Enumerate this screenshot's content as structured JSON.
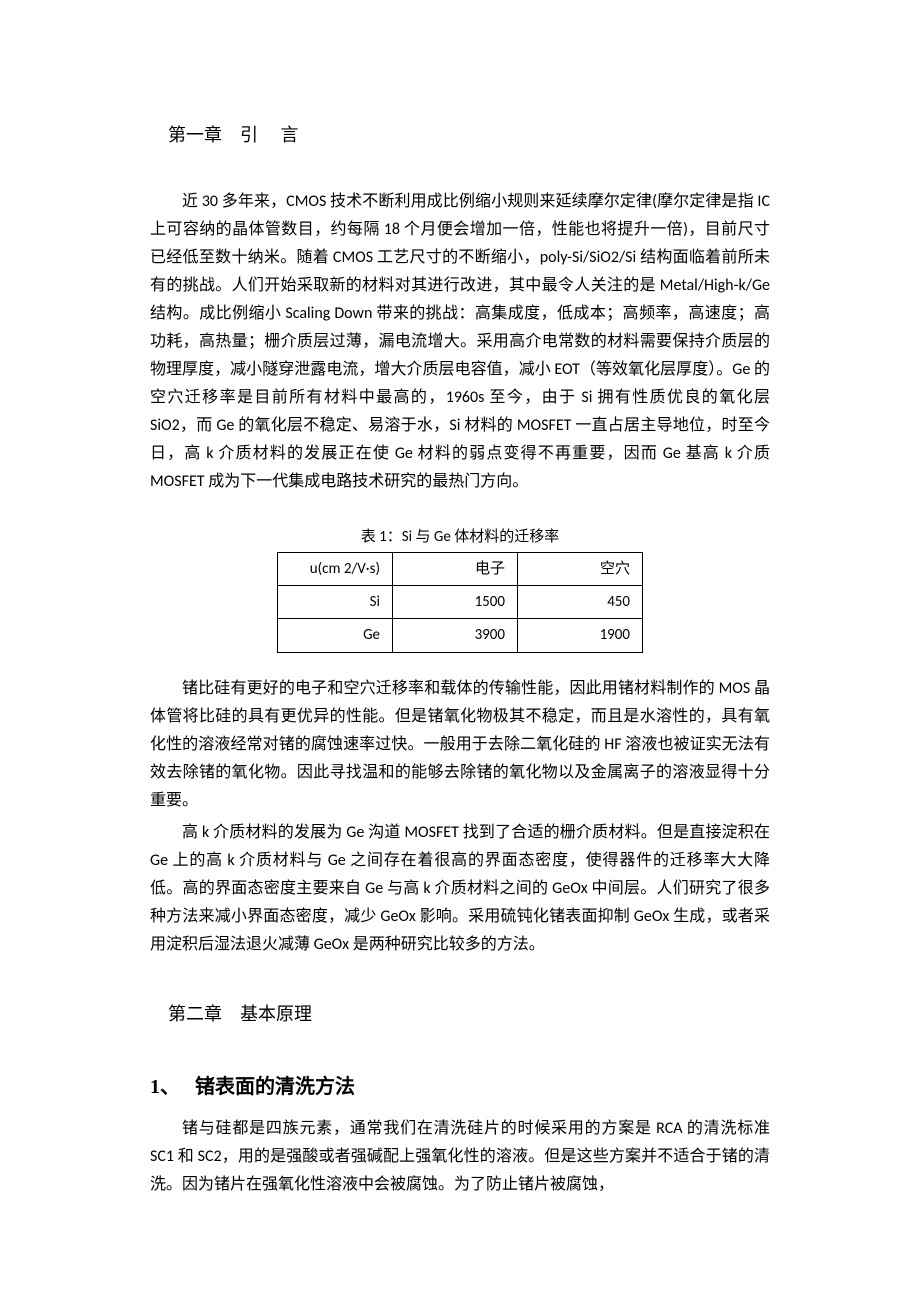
{
  "chapter1": {
    "title_prefix": "第一章",
    "title": "引 言",
    "para1": "近 30 多年来，CMOS 技术不断利用成比例缩小规则来延续摩尔定律(摩尔定律是指 IC 上可容纳的晶体管数目，约每隔 18 个月便会增加一倍，性能也将提升一倍)，目前尺寸已经低至数十纳米。随着 CMOS 工艺尺寸的不断缩小，poly-Si/SiO2/Si 结构面临着前所未有的挑战。人们开始采取新的材料对其进行改进，其中最令人关注的是 Metal/High-k/Ge 结构。成比例缩小 Scaling Down 带来的挑战：高集成度，低成本；高频率，高速度；高功耗，高热量；栅介质层过薄，漏电流增大。采用高介电常数的材料需要保持介质层的物理厚度，减小隧穿泄露电流，增大介质层电容值，减小 EOT（等效氧化层厚度）。Ge 的空穴迁移率是目前所有材料中最高的，1960s 至今，由于 Si 拥有性质优良的氧化层 SiO2，而 Ge 的氧化层不稳定、易溶于水，Si 材料的 MOSFET 一直占居主导地位，时至今日，高 k 介质材料的发展正在使 Ge 材料的弱点变得不再重要，因而 Ge 基高 k 介质 MOSFET 成为下一代集成电路技术研究的最热门方向。",
    "table_caption": "表 1：Si 与 Ge 体材料的迁移率",
    "table": {
      "columns": [
        "u(cm 2/V·s)",
        "电子",
        "空穴"
      ],
      "rows": [
        [
          "Si",
          "1500",
          "450"
        ],
        [
          "Ge",
          "3900",
          "1900"
        ]
      ]
    },
    "para2": "锗比硅有更好的电子和空穴迁移率和载体的传输性能，因此用锗材料制作的 MOS 晶体管将比硅的具有更优异的性能。但是锗氧化物极其不稳定，而且是水溶性的，具有氧化性的溶液经常对锗的腐蚀速率过快。一般用于去除二氧化硅的 HF 溶液也被证实无法有效去除锗的氧化物。因此寻找温和的能够去除锗的氧化物以及金属离子的溶液显得十分重要。",
    "para3": "高 k 介质材料的发展为 Ge 沟道 MOSFET 找到了合适的栅介质材料。但是直接淀积在 Ge 上的高 k 介质材料与 Ge 之间存在着很高的界面态密度，使得器件的迁移率大大降低。高的界面态密度主要来自 Ge 与高 k 介质材料之间的 GeOx 中间层。人们研究了很多种方法来减小界面态密度，减少 GeOx 影响。采用硫钝化锗表面抑制 GeOx 生成，或者采用淀积后湿法退火减薄 GeOx 是两种研究比较多的方法。"
  },
  "chapter2": {
    "title_prefix": "第二章",
    "title": "基本原理",
    "section1": {
      "number": "1、",
      "title": "锗表面的清洗方法",
      "para1": "锗与硅都是四族元素，通常我们在清洗硅片的时候采用的方案是 RCA 的清洗标准 SC1 和 SC2，用的是强酸或者强碱配上强氧化性的溶液。但是这些方案并不适合于锗的清洗。因为锗片在强氧化性溶液中会被腐蚀。为了防止锗片被腐蚀，"
    }
  }
}
